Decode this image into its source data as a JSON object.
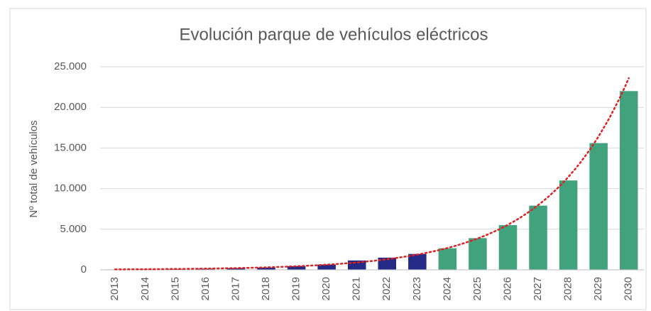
{
  "chart_data": {
    "type": "bar",
    "title": "Evolución parque de vehículos eléctricos",
    "y_label": "Nº total de vehículos",
    "categories": [
      "2013",
      "2014",
      "2015",
      "2016",
      "2017",
      "2018",
      "2019",
      "2020",
      "2021",
      "2022",
      "2023",
      "2024",
      "2025",
      "2026",
      "2027",
      "2028",
      "2029",
      "2030"
    ],
    "values": [
      50,
      70,
      100,
      140,
      200,
      280,
      450,
      650,
      1150,
      1500,
      1950,
      2650,
      3900,
      5500,
      7900,
      11000,
      15600,
      22000
    ],
    "colors": [
      "#232b86",
      "#232b86",
      "#232b86",
      "#232b86",
      "#232b86",
      "#232b86",
      "#232b86",
      "#232b86",
      "#232b86",
      "#232b86",
      "#232b86",
      "#40a37e",
      "#40a37e",
      "#40a37e",
      "#40a37e",
      "#40a37e",
      "#40a37e",
      "#40a37e"
    ],
    "ylim": [
      0,
      25000
    ],
    "yticks": [
      0,
      {
        "value": 5000,
        "label": "5.000"
      },
      {
        "value": 10000,
        "label": "10.000"
      },
      {
        "value": 15000,
        "label": "15.000"
      },
      {
        "value": 20000,
        "label": "20.000"
      },
      {
        "value": 25000,
        "label": "25.000"
      }
    ],
    "grid": true,
    "trendline": "exponential",
    "trendline_color": "#e02020"
  }
}
